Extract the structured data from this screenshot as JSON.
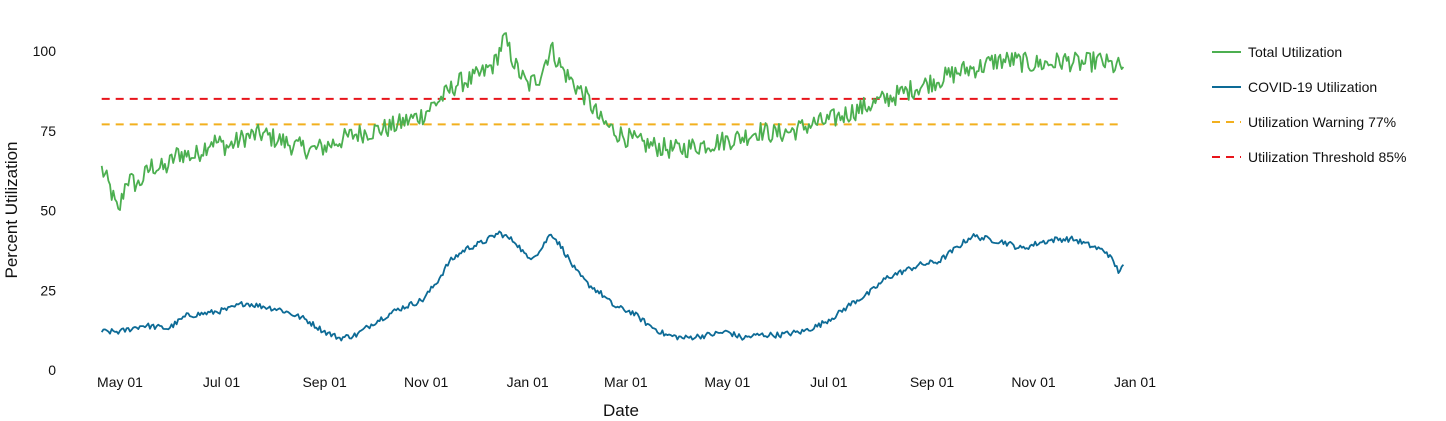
{
  "chart_data": {
    "type": "line",
    "title": "",
    "xlabel": "Date",
    "ylabel": "Percent Utilization",
    "ylim": [
      0,
      105
    ],
    "yticks": [
      0,
      25,
      50,
      75,
      100
    ],
    "xlim": [
      "2020-04-20",
      "2021-12-31"
    ],
    "xticks": [
      {
        "date": "2020-05-01",
        "label": "May 01"
      },
      {
        "date": "2020-07-01",
        "label": "Jul 01"
      },
      {
        "date": "2020-09-01",
        "label": "Sep 01"
      },
      {
        "date": "2020-11-01",
        "label": "Nov 01"
      },
      {
        "date": "2021-01-01",
        "label": "Jan 01"
      },
      {
        "date": "2021-03-01",
        "label": "Mar 01"
      },
      {
        "date": "2021-05-01",
        "label": "May 01"
      },
      {
        "date": "2021-07-01",
        "label": "Jul 01"
      },
      {
        "date": "2021-09-01",
        "label": "Sep 01"
      },
      {
        "date": "2021-11-01",
        "label": "Nov 01"
      },
      {
        "date": "2022-01-01",
        "label": "Jan 01"
      }
    ],
    "grid": false,
    "legend_position": "right",
    "series": [
      {
        "name": "Total Utilization",
        "color": "#4caf50",
        "style": "solid",
        "points": [
          [
            "2020-04-20",
            63
          ],
          [
            "2020-04-25",
            57
          ],
          [
            "2020-04-30",
            49
          ],
          [
            "2020-05-05",
            60
          ],
          [
            "2020-05-12",
            58
          ],
          [
            "2020-05-20",
            64
          ],
          [
            "2020-05-28",
            63
          ],
          [
            "2020-06-05",
            68
          ],
          [
            "2020-06-15",
            67
          ],
          [
            "2020-06-25",
            72
          ],
          [
            "2020-07-05",
            70
          ],
          [
            "2020-07-15",
            73
          ],
          [
            "2020-07-25",
            74
          ],
          [
            "2020-08-05",
            72
          ],
          [
            "2020-08-15",
            70
          ],
          [
            "2020-08-25",
            69
          ],
          [
            "2020-09-01",
            70
          ],
          [
            "2020-09-10",
            72
          ],
          [
            "2020-09-20",
            74
          ],
          [
            "2020-09-30",
            75
          ],
          [
            "2020-10-10",
            76
          ],
          [
            "2020-10-20",
            78
          ],
          [
            "2020-10-30",
            80
          ],
          [
            "2020-11-05",
            83
          ],
          [
            "2020-11-12",
            86
          ],
          [
            "2020-11-20",
            90
          ],
          [
            "2020-11-28",
            91
          ],
          [
            "2020-12-05",
            93
          ],
          [
            "2020-12-12",
            96
          ],
          [
            "2020-12-18",
            104
          ],
          [
            "2020-12-25",
            95
          ],
          [
            "2021-01-01",
            89
          ],
          [
            "2021-01-08",
            92
          ],
          [
            "2021-01-15",
            101
          ],
          [
            "2021-01-22",
            94
          ],
          [
            "2021-01-30",
            89
          ],
          [
            "2021-02-06",
            85
          ],
          [
            "2021-02-14",
            78
          ],
          [
            "2021-02-22",
            75
          ],
          [
            "2021-03-01",
            73
          ],
          [
            "2021-03-10",
            71
          ],
          [
            "2021-03-20",
            70
          ],
          [
            "2021-03-30",
            69
          ],
          [
            "2021-04-10",
            70
          ],
          [
            "2021-04-20",
            71
          ],
          [
            "2021-04-30",
            72
          ],
          [
            "2021-05-10",
            73
          ],
          [
            "2021-05-20",
            75
          ],
          [
            "2021-05-30",
            74
          ],
          [
            "2021-06-10",
            75
          ],
          [
            "2021-06-20",
            77
          ],
          [
            "2021-06-30",
            78
          ],
          [
            "2021-07-10",
            80
          ],
          [
            "2021-07-20",
            82
          ],
          [
            "2021-07-30",
            84
          ],
          [
            "2021-08-10",
            86
          ],
          [
            "2021-08-20",
            88
          ],
          [
            "2021-08-30",
            90
          ],
          [
            "2021-09-10",
            92
          ],
          [
            "2021-09-20",
            94
          ],
          [
            "2021-09-30",
            95
          ],
          [
            "2021-10-10",
            97
          ],
          [
            "2021-10-20",
            97
          ],
          [
            "2021-10-30",
            96
          ],
          [
            "2021-11-10",
            96
          ],
          [
            "2021-11-20",
            97
          ],
          [
            "2021-11-30",
            96
          ],
          [
            "2021-12-10",
            97
          ],
          [
            "2021-12-20",
            95
          ],
          [
            "2021-12-25",
            95
          ]
        ]
      },
      {
        "name": "COVID-19 Utilization",
        "color": "#0d6b96",
        "style": "solid",
        "points": [
          [
            "2020-04-20",
            12
          ],
          [
            "2020-05-01",
            12
          ],
          [
            "2020-05-15",
            14
          ],
          [
            "2020-05-30",
            13
          ],
          [
            "2020-06-10",
            17
          ],
          [
            "2020-06-25",
            18
          ],
          [
            "2020-07-05",
            19
          ],
          [
            "2020-07-15",
            21
          ],
          [
            "2020-07-25",
            20
          ],
          [
            "2020-08-05",
            19
          ],
          [
            "2020-08-20",
            16
          ],
          [
            "2020-09-01",
            12
          ],
          [
            "2020-09-10",
            10
          ],
          [
            "2020-09-20",
            11
          ],
          [
            "2020-10-01",
            15
          ],
          [
            "2020-10-15",
            19
          ],
          [
            "2020-10-30",
            22
          ],
          [
            "2020-11-08",
            28
          ],
          [
            "2020-11-15",
            34
          ],
          [
            "2020-11-25",
            38
          ],
          [
            "2020-12-05",
            40
          ],
          [
            "2020-12-15",
            43
          ],
          [
            "2020-12-25",
            40
          ],
          [
            "2021-01-01",
            35
          ],
          [
            "2021-01-08",
            37
          ],
          [
            "2021-01-15",
            43
          ],
          [
            "2021-01-22",
            38
          ],
          [
            "2021-01-30",
            31
          ],
          [
            "2021-02-06",
            27
          ],
          [
            "2021-02-14",
            24
          ],
          [
            "2021-02-22",
            20
          ],
          [
            "2021-03-05",
            18
          ],
          [
            "2021-03-15",
            14
          ],
          [
            "2021-03-25",
            11
          ],
          [
            "2021-04-05",
            10
          ],
          [
            "2021-04-20",
            11
          ],
          [
            "2021-05-01",
            12
          ],
          [
            "2021-05-10",
            10
          ],
          [
            "2021-05-20",
            11
          ],
          [
            "2021-06-01",
            11
          ],
          [
            "2021-06-15",
            12
          ],
          [
            "2021-06-25",
            14
          ],
          [
            "2021-07-05",
            17
          ],
          [
            "2021-07-15",
            21
          ],
          [
            "2021-07-25",
            24
          ],
          [
            "2021-08-05",
            29
          ],
          [
            "2021-08-15",
            31
          ],
          [
            "2021-08-25",
            33
          ],
          [
            "2021-09-05",
            34
          ],
          [
            "2021-09-15",
            38
          ],
          [
            "2021-09-25",
            42
          ],
          [
            "2021-10-05",
            41
          ],
          [
            "2021-10-15",
            40
          ],
          [
            "2021-10-25",
            38
          ],
          [
            "2021-11-05",
            40
          ],
          [
            "2021-11-15",
            41
          ],
          [
            "2021-11-25",
            41
          ],
          [
            "2021-12-05",
            39
          ],
          [
            "2021-12-15",
            37
          ],
          [
            "2021-12-20",
            33
          ],
          [
            "2021-12-22",
            31
          ],
          [
            "2021-12-25",
            33
          ]
        ]
      },
      {
        "name": "Utilization Warning 77%",
        "color": "#f2b01e",
        "style": "dashed",
        "points": [
          [
            "2020-04-20",
            77
          ],
          [
            "2021-12-25",
            77
          ]
        ]
      },
      {
        "name": "Utilization Threshold 85%",
        "color": "#e8141b",
        "style": "dashed",
        "points": [
          [
            "2020-04-20",
            85
          ],
          [
            "2021-12-25",
            85
          ]
        ]
      }
    ]
  }
}
